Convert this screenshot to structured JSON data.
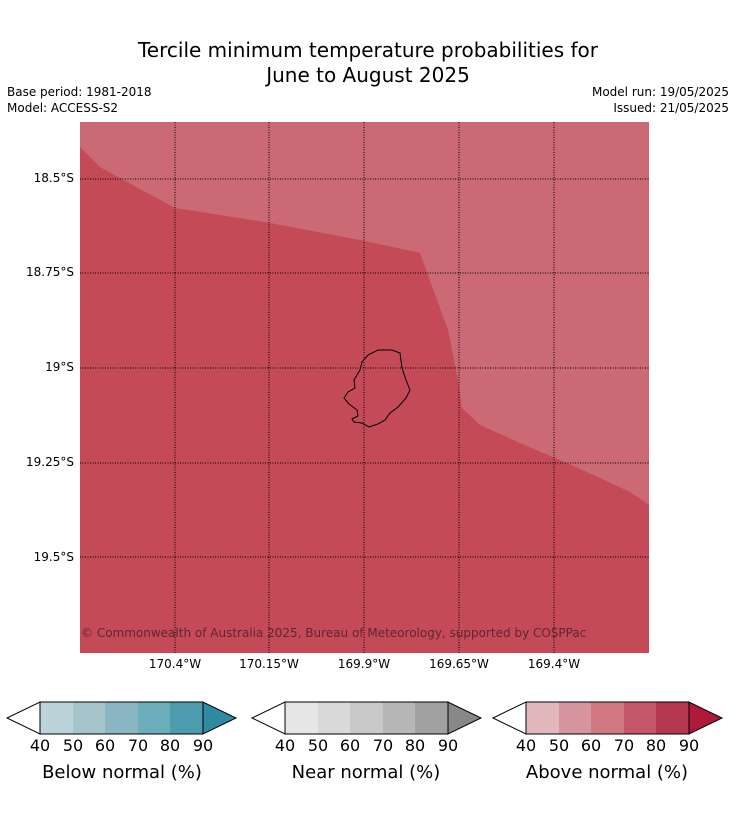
{
  "header": {
    "title_line1": "Tercile minimum temperature probabilities for",
    "title_line2": "June to August 2025",
    "base_period": "Base period: 1981-2018",
    "model": "Model: ACCESS-S2",
    "model_run": "Model run: 19/05/2025",
    "issued": "Issued: 21/05/2025"
  },
  "map": {
    "lat_labels": [
      "18.5°S",
      "18.75°S",
      "19°S",
      "19.25°S",
      "19.5°S"
    ],
    "lon_labels": [
      "170.4°W",
      "170.15°W",
      "169.9°W",
      "169.65°W",
      "169.4°W"
    ],
    "copyright": "© Commonwealth of Australia 2025, Bureau of Meteorology, supported by COSPPac",
    "region_colors": {
      "above_normal_70_80": "#c44a58",
      "above_normal_60_70": "#cb6a74"
    }
  },
  "legends": [
    {
      "title": "Below normal (%)",
      "ticks": [
        "40",
        "50",
        "60",
        "70",
        "80",
        "90"
      ],
      "colors": [
        "#bdd3da",
        "#a5c5cb",
        "#89b6c2",
        "#6cadbb",
        "#4d9cae",
        "#2d8ba3"
      ]
    },
    {
      "title": "Near normal (%)",
      "ticks": [
        "40",
        "50",
        "60",
        "70",
        "80",
        "90"
      ],
      "colors": [
        "#e6e6e6",
        "#d9d9d9",
        "#c9c9c9",
        "#b6b6b6",
        "#a1a1a1",
        "#888888"
      ]
    },
    {
      "title": "Above normal (%)",
      "ticks": [
        "40",
        "50",
        "60",
        "70",
        "80",
        "90"
      ],
      "colors": [
        "#e2b8bd",
        "#d6959e",
        "#cf7881",
        "#c4566a",
        "#b5364f",
        "#b0183c"
      ]
    }
  ]
}
